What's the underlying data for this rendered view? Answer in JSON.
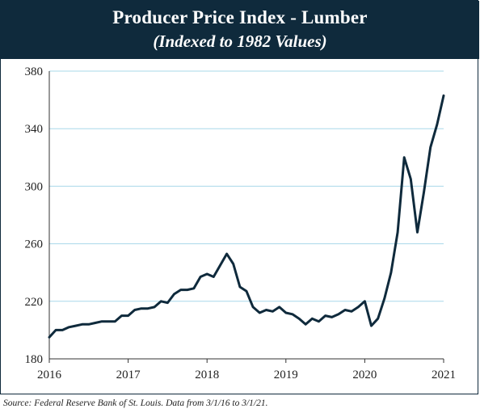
{
  "chart_data": {
    "type": "line",
    "title": "Producer Price Index - Lumber",
    "subtitle": "(Indexed to 1982 Values)",
    "xlabel": "",
    "ylabel": "",
    "xlim": [
      2016,
      2021
    ],
    "ylim": [
      180,
      380
    ],
    "yticks": [
      180,
      220,
      260,
      300,
      340,
      380
    ],
    "xticks": [
      2016,
      2017,
      2018,
      2019,
      2020,
      2021
    ],
    "x_tick_labels": [
      "2016",
      "2017",
      "2018",
      "2019",
      "2020",
      "2021"
    ],
    "y_tick_labels": [
      "180",
      "220",
      "260",
      "300",
      "340",
      "380"
    ],
    "grid": "horizontal",
    "line_color": "#0f2a3c",
    "grid_color": "#a9d8ea",
    "series": [
      {
        "x": [
          2016.0,
          2016.083,
          2016.167,
          2016.25,
          2016.333,
          2016.417,
          2016.5,
          2016.583,
          2016.667,
          2016.75,
          2016.833,
          2016.917,
          2017.0,
          2017.083,
          2017.167,
          2017.25,
          2017.333,
          2017.417,
          2017.5,
          2017.583,
          2017.667,
          2017.75,
          2017.833,
          2017.917,
          2018.0,
          2018.083,
          2018.167,
          2018.25,
          2018.333,
          2018.417,
          2018.5,
          2018.583,
          2018.667,
          2018.75,
          2018.833,
          2018.917,
          2019.0,
          2019.083,
          2019.167,
          2019.25,
          2019.333,
          2019.417,
          2019.5,
          2019.583,
          2019.667,
          2019.75,
          2019.833,
          2019.917,
          2020.0,
          2020.083,
          2020.167,
          2020.25,
          2020.333,
          2020.417,
          2020.5,
          2020.583,
          2020.667,
          2020.75,
          2020.833,
          2020.917,
          2021.0
        ],
        "values": [
          195,
          200,
          200,
          202,
          203,
          204,
          204,
          205,
          206,
          206,
          206,
          210,
          210,
          214,
          215,
          215,
          216,
          220,
          219,
          225,
          228,
          228,
          229,
          237,
          239,
          237,
          245,
          253,
          246,
          230,
          227,
          216,
          212,
          214,
          213,
          216,
          212,
          211,
          208,
          204,
          208,
          206,
          210,
          209,
          211,
          214,
          213,
          216,
          220,
          203,
          208,
          222,
          240,
          268,
          320,
          305,
          268,
          296,
          327,
          343,
          363
        ]
      }
    ]
  },
  "source_note": "Source: Federal Reserve Bank of St. Louis. Data from 3/1/16 to 3/1/21."
}
